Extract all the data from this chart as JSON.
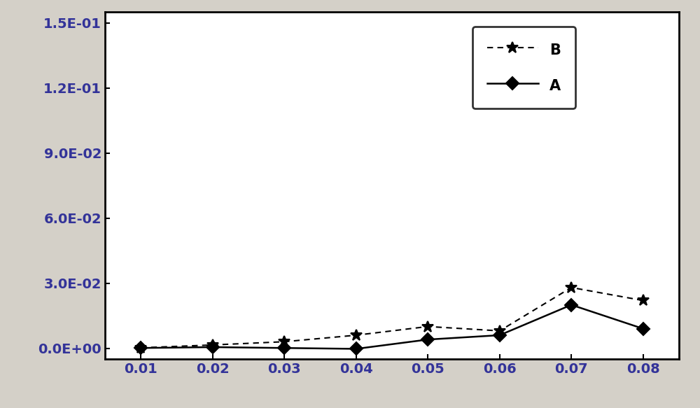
{
  "x": [
    0.01,
    0.02,
    0.03,
    0.04,
    0.05,
    0.06,
    0.07,
    0.08
  ],
  "B": [
    0.0002,
    0.0015,
    0.003,
    0.006,
    0.01,
    0.008,
    0.028,
    0.022
  ],
  "A": [
    0.0001,
    0.0005,
    0.0001,
    -0.0003,
    0.004,
    0.006,
    0.02,
    0.009
  ],
  "line_B_color": "#000000",
  "line_A_color": "#000000",
  "line_B_style": "--",
  "line_A_style": "-",
  "marker_B": "*",
  "marker_A": "D",
  "legend_B": "B",
  "legend_A": "A",
  "xlim": [
    0.005,
    0.085
  ],
  "ylim": [
    -0.005,
    0.155
  ],
  "xticks": [
    0.01,
    0.02,
    0.03,
    0.04,
    0.05,
    0.06,
    0.07,
    0.08
  ],
  "yticks": [
    0.0,
    0.03,
    0.06,
    0.09,
    0.12,
    0.15
  ],
  "ytick_labels": [
    "0.0E+00",
    "3.0E-02",
    "6.0E-02",
    "9.0E-02",
    "1.2E-01",
    "1.5E-01"
  ],
  "bg_color": "#d4d0c8",
  "plot_bg_color": "#ffffff",
  "figsize": [
    10.0,
    5.83
  ]
}
